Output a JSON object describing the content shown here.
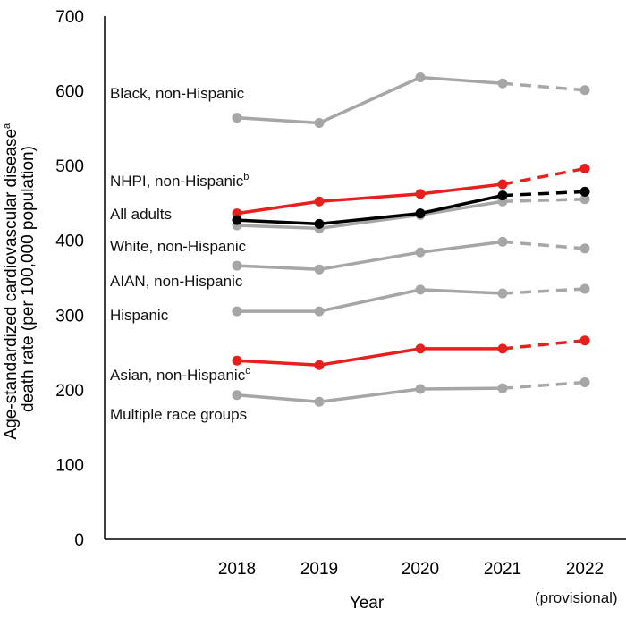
{
  "chart_data": {
    "type": "line",
    "ylabel_line1": "Age-standardized cardiovascular disease",
    "ylabel_sup": "a",
    "ylabel_line2": "death rate (per 100,000 population)",
    "xlabel": "Year",
    "ylim": [
      0,
      700
    ],
    "yticks": [
      0,
      100,
      200,
      300,
      400,
      500,
      600,
      700
    ],
    "categories": [
      "2018",
      "2019",
      "2020",
      "2021",
      "2022"
    ],
    "category_sublabels": [
      "",
      "",
      "",
      "",
      "(provisional)"
    ],
    "provisional_from_index": 3,
    "series": [
      {
        "name": "Black, non-Hispanic",
        "sup": "",
        "color": "#a6a6a6",
        "values": [
          564,
          557,
          618,
          610,
          601
        ]
      },
      {
        "name": "NHPI, non-Hispanic",
        "sup": "b",
        "color": "#e8201d",
        "values": [
          436,
          452,
          462,
          475,
          496
        ]
      },
      {
        "name": "All adults",
        "sup": "",
        "color": "#000000",
        "values": [
          427,
          422,
          436,
          460,
          465
        ]
      },
      {
        "name": "White, non-Hispanic",
        "sup": "",
        "color": "#a6a6a6",
        "values": [
          420,
          416,
          434,
          452,
          455
        ]
      },
      {
        "name": "AIAN, non-Hispanic",
        "sup": "",
        "color": "#a6a6a6",
        "values": [
          366,
          361,
          384,
          398,
          389
        ]
      },
      {
        "name": "Hispanic",
        "sup": "",
        "color": "#a6a6a6",
        "values": [
          305,
          305,
          334,
          329,
          335
        ]
      },
      {
        "name": "Asian, non-Hispanic",
        "sup": "c",
        "color": "#e8201d",
        "values": [
          239,
          233,
          255,
          255,
          266
        ]
      },
      {
        "name": "Multiple race groups",
        "sup": "",
        "color": "#a6a6a6",
        "values": [
          193,
          184,
          201,
          202,
          210
        ]
      }
    ]
  }
}
